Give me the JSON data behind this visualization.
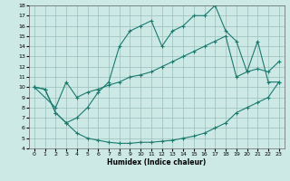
{
  "xlabel": "Humidex (Indice chaleur)",
  "xlim": [
    -0.5,
    23.5
  ],
  "ylim": [
    4,
    18
  ],
  "xticks": [
    0,
    1,
    2,
    3,
    4,
    5,
    6,
    7,
    8,
    9,
    10,
    11,
    12,
    13,
    14,
    15,
    16,
    17,
    18,
    19,
    20,
    21,
    22,
    23
  ],
  "yticks": [
    4,
    5,
    6,
    7,
    8,
    9,
    10,
    11,
    12,
    13,
    14,
    15,
    16,
    17,
    18
  ],
  "bg_color": "#cce9e5",
  "grid_color": "#9bbfbb",
  "line_color": "#1a7a6e",
  "line1_x": [
    0,
    1,
    2,
    3,
    4,
    5,
    6,
    7,
    8,
    9,
    10,
    11,
    12,
    13,
    14,
    15,
    16,
    17,
    18,
    19,
    20,
    21,
    22,
    23
  ],
  "line1_y": [
    10,
    9.8,
    7.5,
    6.5,
    5.5,
    5.0,
    4.8,
    4.6,
    4.5,
    4.5,
    4.6,
    4.6,
    4.7,
    4.8,
    5.0,
    5.2,
    5.5,
    6.0,
    6.5,
    7.5,
    8.0,
    8.5,
    9.0,
    10.5
  ],
  "line2_x": [
    0,
    2,
    3,
    4,
    5,
    6,
    7,
    8,
    9,
    10,
    11,
    12,
    13,
    14,
    15,
    16,
    17,
    18,
    19,
    20,
    21,
    22,
    23
  ],
  "line2_y": [
    10,
    8.0,
    10.5,
    9.0,
    9.5,
    9.8,
    10.2,
    10.5,
    11.0,
    11.2,
    11.5,
    12.0,
    12.5,
    13.0,
    13.5,
    14.0,
    14.5,
    15.0,
    11.0,
    11.5,
    11.8,
    11.5,
    12.5
  ],
  "line3_x": [
    0,
    1,
    2,
    3,
    4,
    5,
    6,
    7,
    8,
    9,
    10,
    11,
    12,
    13,
    14,
    15,
    16,
    17,
    18,
    19,
    20,
    21,
    22,
    23
  ],
  "line3_y": [
    10,
    9.8,
    7.5,
    6.5,
    7.0,
    8.0,
    9.5,
    10.5,
    14.0,
    15.5,
    16.0,
    16.5,
    14.0,
    15.5,
    16.0,
    17.0,
    17.0,
    18.0,
    15.5,
    14.5,
    11.5,
    14.5,
    10.5,
    10.5
  ]
}
